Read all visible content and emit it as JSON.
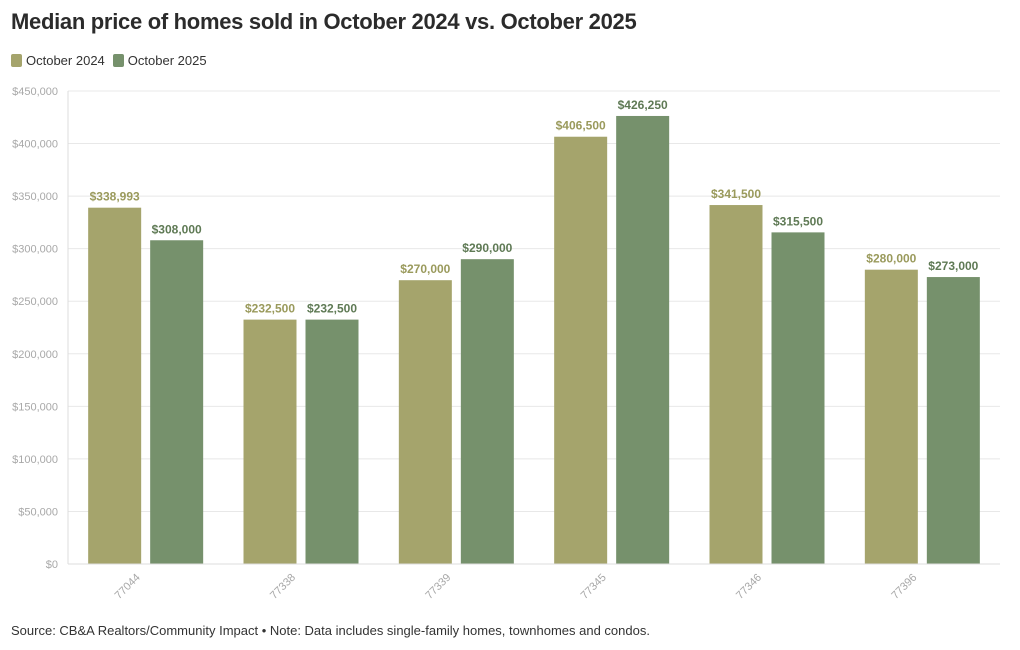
{
  "title": "Median price of homes sold in October 2024 vs. October 2025",
  "footer": "Source: CB&A Realtors/Community Impact • Note: Data includes single-family homes, townhomes and condos.",
  "legend": [
    {
      "label": "October 2024",
      "color": "#a5a46c"
    },
    {
      "label": "October 2025",
      "color": "#76916c"
    }
  ],
  "chart_data": {
    "type": "bar",
    "categories": [
      "77044",
      "77338",
      "77339",
      "77345",
      "77346",
      "77396"
    ],
    "series": [
      {
        "name": "October 2024",
        "color": "#a5a46c",
        "label_color": "#9a9a5c",
        "values": [
          338993,
          232500,
          270000,
          406500,
          341500,
          280000
        ],
        "labels": [
          "$338,993",
          "$232,500",
          "$270,000",
          "$406,500",
          "$341,500",
          "$280,000"
        ]
      },
      {
        "name": "October 2025",
        "color": "#76916c",
        "label_color": "#5f7a55",
        "values": [
          308000,
          232500,
          290000,
          426250,
          315500,
          273000
        ],
        "labels": [
          "$308,000",
          "$232,500",
          "$290,000",
          "$426,250",
          "$315,500",
          "$273,000"
        ]
      }
    ],
    "ylim": [
      0,
      450000
    ],
    "yticks": [
      0,
      50000,
      100000,
      150000,
      200000,
      250000,
      300000,
      350000,
      400000,
      450000
    ],
    "ytick_labels": [
      "$0",
      "$50,000",
      "$100,000",
      "$150,000",
      "$200,000",
      "$250,000",
      "$300,000",
      "$350,000",
      "$400,000",
      "$450,000"
    ],
    "grid": true,
    "legend_position": "top-left"
  }
}
